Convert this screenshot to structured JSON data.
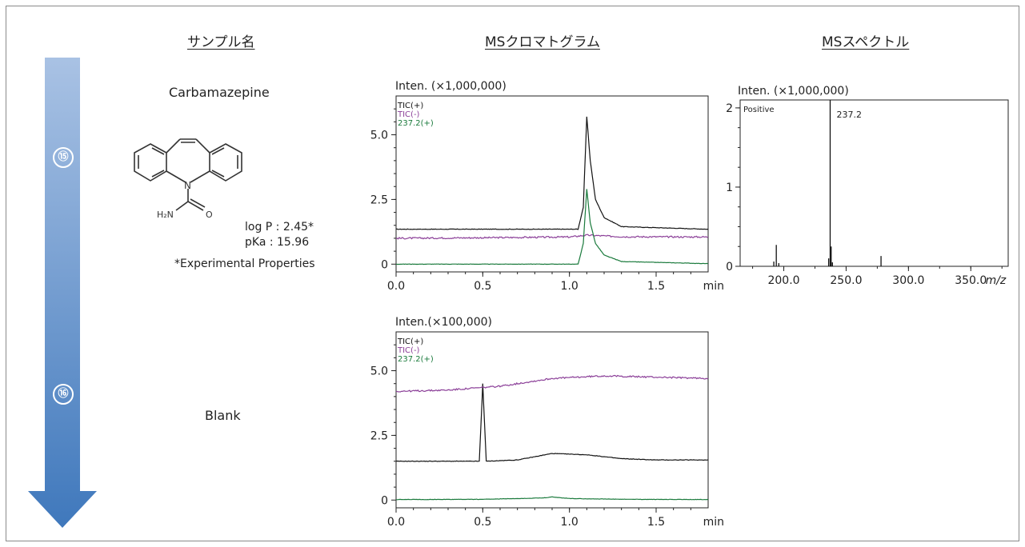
{
  "headers": {
    "sample_name": "サンプル名",
    "ms_chromatogram": "MSクロマトグラム",
    "ms_spectrum": "MSスペクトル"
  },
  "steps": [
    "⑮",
    "⑯"
  ],
  "samples": [
    {
      "name": "Carbamazepine",
      "structure_label": "H₂N",
      "structure_o": "O",
      "logp": "log P  : 2.45*",
      "pka": "pKa   : 15.96",
      "note": "*Experimental Properties"
    },
    {
      "name": "Blank"
    }
  ],
  "colors": {
    "tic_pos": "#111111",
    "tic_neg": "#8b3f98",
    "ion": "#1a7a3c",
    "arrow_top": "#a9c2e4",
    "arrow_bottom": "#3f78bc"
  },
  "chart_data": [
    {
      "type": "line",
      "title": "Inten. (×1,000,000)",
      "xlabel": "min",
      "xlim": [
        0,
        1.8
      ],
      "ylim": [
        -0.3,
        6.5
      ],
      "xticks": [
        "0.0",
        "0.5",
        "1.0",
        "1.5"
      ],
      "yticks": [
        "0",
        "2.5",
        "5.0"
      ],
      "legend": [
        "TIC(+)",
        "TIC(-)",
        "237.2(+)"
      ],
      "series": [
        {
          "name": "TIC(+)",
          "x": [
            0,
            1.05,
            1.08,
            1.1,
            1.12,
            1.15,
            1.2,
            1.3,
            1.8
          ],
          "y": [
            1.35,
            1.35,
            2.2,
            5.7,
            4.0,
            2.5,
            1.8,
            1.45,
            1.35
          ]
        },
        {
          "name": "TIC(-)",
          "x": [
            0,
            0.5,
            1.0,
            1.1,
            1.3,
            1.8
          ],
          "y": [
            1.0,
            1.02,
            1.05,
            1.12,
            1.06,
            1.05
          ]
        },
        {
          "name": "237.2(+)",
          "x": [
            0,
            1.05,
            1.08,
            1.1,
            1.12,
            1.15,
            1.2,
            1.3,
            1.8
          ],
          "y": [
            0.0,
            0.0,
            0.8,
            2.9,
            1.6,
            0.8,
            0.35,
            0.1,
            0.02
          ]
        }
      ]
    },
    {
      "type": "line",
      "title": "Inten.(×100,000)",
      "xlabel": "min",
      "xlim": [
        0,
        1.8
      ],
      "ylim": [
        -0.3,
        6.5
      ],
      "xticks": [
        "0.0",
        "0.5",
        "1.0",
        "1.5"
      ],
      "yticks": [
        "0",
        "2.5",
        "5.0"
      ],
      "legend": [
        "TIC(+)",
        "TIC(-)",
        "237.2(+)"
      ],
      "series": [
        {
          "name": "TIC(+)",
          "x": [
            0,
            0.48,
            0.49,
            0.5,
            0.51,
            0.52,
            0.7,
            0.9,
            1.1,
            1.3,
            1.5,
            1.8
          ],
          "y": [
            1.5,
            1.5,
            3.0,
            4.5,
            3.0,
            1.5,
            1.55,
            1.8,
            1.75,
            1.6,
            1.55,
            1.55
          ]
        },
        {
          "name": "TIC(-)",
          "x": [
            0,
            0.3,
            0.6,
            0.9,
            1.2,
            1.5,
            1.8
          ],
          "y": [
            4.2,
            4.25,
            4.4,
            4.7,
            4.8,
            4.75,
            4.7
          ]
        },
        {
          "name": "237.2(+)",
          "x": [
            0,
            0.5,
            0.85,
            0.9,
            1.0,
            1.3,
            1.8
          ],
          "y": [
            0.02,
            0.03,
            0.08,
            0.12,
            0.06,
            0.03,
            0.02
          ]
        }
      ]
    },
    {
      "type": "bar",
      "title": "Inten. (×1,000,000)",
      "xlabel": "m/z",
      "xlim": [
        165,
        380
      ],
      "ylim": [
        0,
        2.1
      ],
      "xticks": [
        "200.0",
        "250.0",
        "300.0",
        "350.0"
      ],
      "yticks": [
        "0",
        "1",
        "2"
      ],
      "annotation_mode": "Positive",
      "peak_label": "237.2",
      "peaks": {
        "x": [
          192,
          194,
          196,
          236,
          237.2,
          238,
          239,
          278
        ],
        "y": [
          0.06,
          0.27,
          0.04,
          0.1,
          2.1,
          0.25,
          0.05,
          0.13
        ]
      }
    }
  ]
}
